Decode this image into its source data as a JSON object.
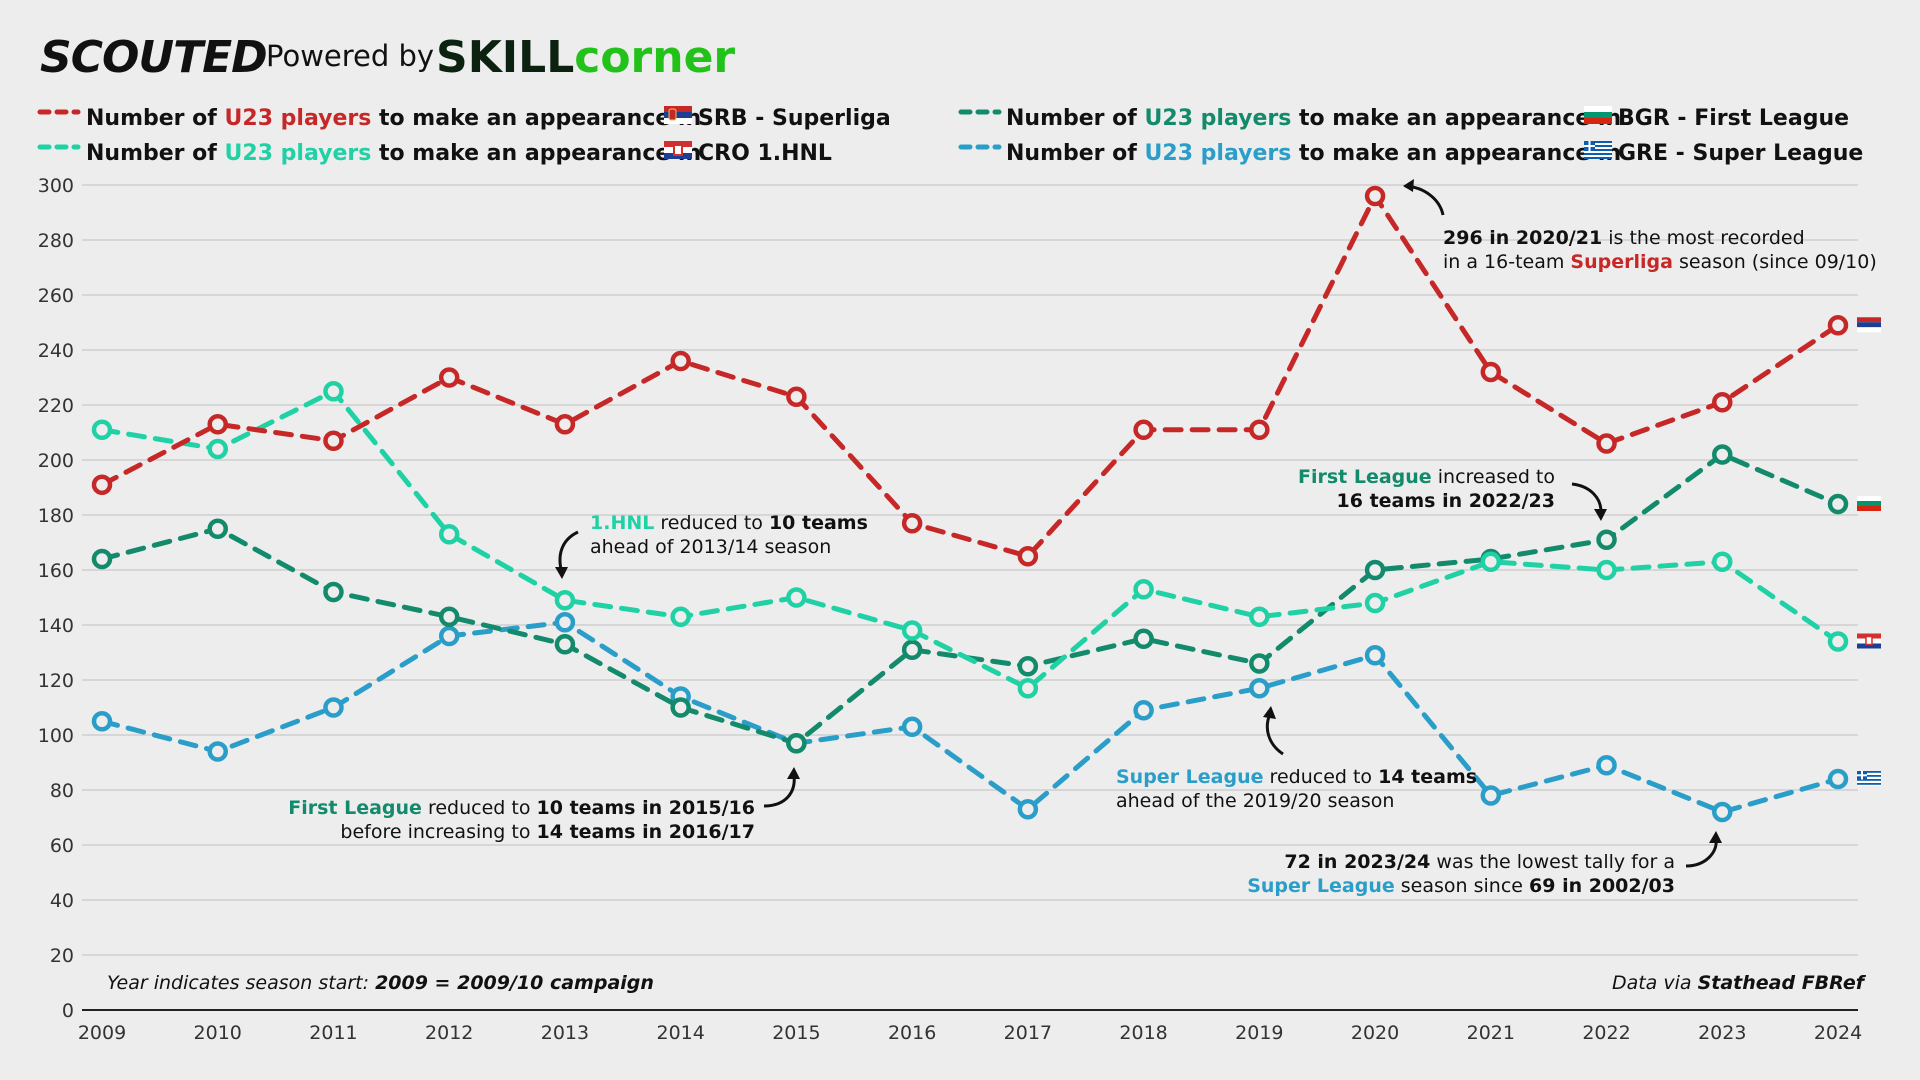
{
  "header": {
    "brand": "SCOUTED",
    "powered_by": "Powered by",
    "partner_a": "SKILL",
    "partner_b": "corner"
  },
  "colors": {
    "srb": "#c62828",
    "bgr": "#138a6b",
    "cro": "#1fd1a4",
    "gre": "#2a9ec9"
  },
  "legend": {
    "prefix": "Number of ",
    "highlight": "U23 players",
    "middle": " to make an appearance in ",
    "items": [
      {
        "key": "srb",
        "flag": "serbia-flag",
        "league": "SRB - Superliga"
      },
      {
        "key": "cro",
        "flag": "croatia-flag",
        "league": "CRO 1.HNL"
      },
      {
        "key": "bgr",
        "flag": "bulgaria-flag",
        "league": "BGR - First League"
      },
      {
        "key": "gre",
        "flag": "greece-flag",
        "league": "GRE - Super League"
      }
    ]
  },
  "chart_data": {
    "type": "line",
    "title": "Number of U23 players to make an appearance",
    "xlabel": "",
    "ylabel": "",
    "x": [
      2009,
      2010,
      2011,
      2012,
      2013,
      2014,
      2015,
      2016,
      2017,
      2018,
      2019,
      2020,
      2021,
      2022,
      2023,
      2024
    ],
    "ylim": [
      0,
      300
    ],
    "yticks": [
      0,
      20,
      40,
      60,
      80,
      100,
      120,
      140,
      160,
      180,
      200,
      220,
      240,
      260,
      280,
      300
    ],
    "series": [
      {
        "key": "srb",
        "name": "SRB - Superliga",
        "values": [
          191,
          213,
          207,
          230,
          213,
          236,
          223,
          177,
          165,
          211,
          211,
          296,
          232,
          206,
          221,
          249
        ]
      },
      {
        "key": "bgr",
        "name": "BGR - First League",
        "values": [
          164,
          175,
          152,
          143,
          133,
          110,
          97,
          131,
          125,
          135,
          126,
          160,
          164,
          171,
          202,
          184
        ]
      },
      {
        "key": "cro",
        "name": "CRO 1.HNL",
        "values": [
          211,
          204,
          225,
          173,
          149,
          143,
          150,
          138,
          117,
          153,
          143,
          148,
          163,
          160,
          163,
          134
        ]
      },
      {
        "key": "gre",
        "name": "GRE - Super League",
        "values": [
          105,
          94,
          110,
          136,
          141,
          114,
          97,
          103,
          73,
          109,
          117,
          129,
          78,
          89,
          72,
          84
        ]
      }
    ],
    "end_flags": [
      {
        "key": "srb",
        "flag": "serbia-flag"
      },
      {
        "key": "bgr",
        "flag": "bulgaria-flag"
      },
      {
        "key": "cro",
        "flag": "croatia-flag"
      },
      {
        "key": "gre",
        "flag": "greece-flag"
      }
    ],
    "annotations": {
      "srb_peak": {
        "l1_b": "296 in 2020/21",
        "l1_r": " is the most recorded",
        "l2_a": "in a 16-team ",
        "l2_c": "Superliga",
        "l2_b": " season (since 09/10)"
      },
      "hnl": {
        "l1_c": "1.HNL",
        "l1_a": " reduced to ",
        "l1_b": "10 teams",
        "l2": "ahead of 2013/14 season"
      },
      "bgr_increase": {
        "l1_c": "First League",
        "l1_a": " increased to",
        "l2_b": "16 teams  in 2022/23"
      },
      "bgr_reduce": {
        "l1_c": "First League",
        "l1_a": " reduced to ",
        "l1_b": "10 teams in 2015/16",
        "l2_a": "before increasing to ",
        "l2_b": "14 teams  in 2016/17"
      },
      "gre_reduce": {
        "l1_c": "Super League",
        "l1_a": " reduced to ",
        "l1_b": "14 teams",
        "l2": "ahead of the 2019/20 season"
      },
      "gre_low": {
        "l1_b": "72 in 2023/24",
        "l1_a": " was the lowest tally for a",
        "l2_c": "Super League",
        "l2_a": " season since ",
        "l2_b": "69 in 2002/03"
      }
    },
    "footnote_left": {
      "a": "Year indicates season start: ",
      "b": "2009 = 2009/10 campaign"
    },
    "footnote_right": {
      "a": "Data via ",
      "b": "Stathead FBRef"
    }
  }
}
